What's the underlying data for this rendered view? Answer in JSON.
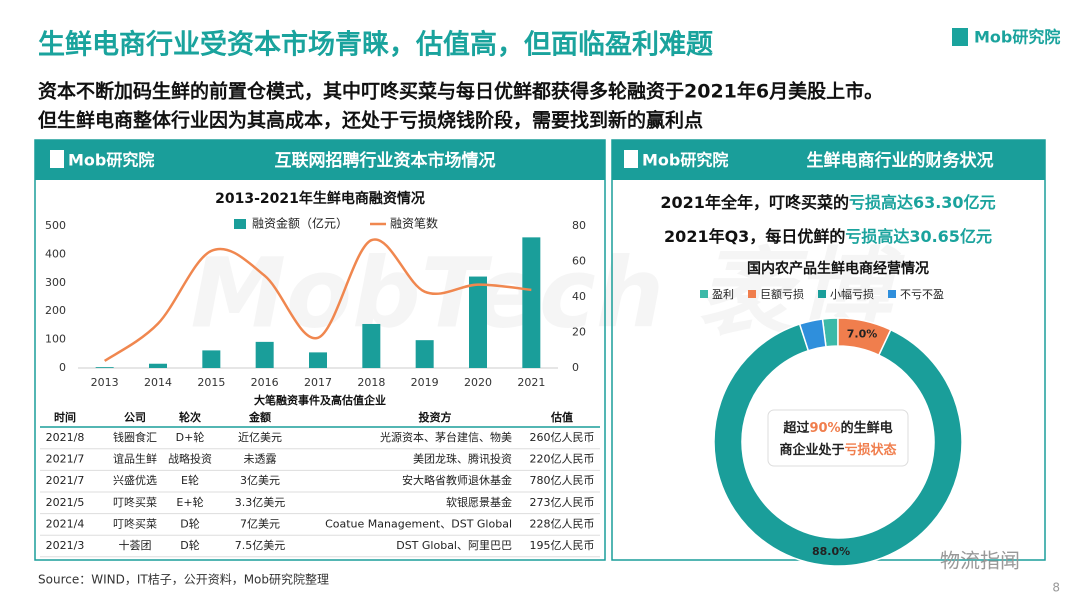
{
  "header": {
    "title": "生鲜电商行业受资本市场青睐，估值高，但面临盈利难题",
    "logo": "Mob研究院",
    "subtitle": [
      "资本不断加码生鲜的前置仓模式，其中叮咚买菜与每日优鲜都获得多轮融资于2021年6月美股上市。",
      "但生鲜电商整体行业因为其高成本，还处于亏损烧钱阶段，需要找到新的赢利点"
    ]
  },
  "left_panel": {
    "title": "互联网招聘行业资本市场情况"
  },
  "right_panel": {
    "title": "生鲜电商行业的财务状况",
    "highlights": [
      [
        "2021年全年，叮咚买菜的",
        "亏损高达63.30亿元"
      ],
      [
        "2021年Q3，每日优鲜的",
        "亏损高达30.65亿元"
      ]
    ]
  },
  "table": {
    "title": "大笔融资事件及高估值企业",
    "columns": [
      "时间",
      "公司",
      "轮次",
      "金额",
      "投资方",
      "估值"
    ],
    "rows": [
      [
        "2021/8",
        "钱圈食汇",
        "D+轮",
        "近亿美元",
        "光源资本、茅台建信、物美",
        "260亿人民币"
      ],
      [
        "2021/7",
        "谊品生鲜",
        "战略投资",
        "未透露",
        "美团龙珠、腾讯投资",
        "220亿人民币"
      ],
      [
        "2021/7",
        "兴盛优选",
        "E轮",
        "3亿美元",
        "安大略省教师退休基金",
        "780亿人民币"
      ],
      [
        "2021/5",
        "叮咚买菜",
        "E+轮",
        "3.3亿美元",
        "软银愿景基金",
        "273亿人民币"
      ],
      [
        "2021/4",
        "叮咚买菜",
        "D轮",
        "7亿美元",
        "Coatue Management、DST Global",
        "228亿人民币"
      ],
      [
        "2021/3",
        "十荟团",
        "D轮",
        "7.5亿美元",
        "DST Global、阿里巴巴",
        "195亿人民币"
      ]
    ]
  },
  "chart_data": [
    {
      "type": "combo",
      "title": "2013-2021年生鲜电商融资情况",
      "categories": [
        "2013",
        "2014",
        "2015",
        "2016",
        "2017",
        "2018",
        "2019",
        "2020",
        "2021"
      ],
      "series": [
        {
          "name": "融资金额（亿元）",
          "type": "bar",
          "color": "#1a9e9a",
          "values": [
            3,
            15,
            62,
            92,
            55,
            155,
            98,
            322,
            460
          ]
        },
        {
          "name": "融资笔数",
          "type": "line",
          "axis": "y2",
          "color": "#f0874f",
          "values": [
            4,
            25,
            66,
            52,
            17,
            72,
            43,
            47,
            44
          ]
        }
      ],
      "ylim": [
        0,
        500
      ],
      "yticks": [
        0,
        100,
        200,
        300,
        400,
        500
      ],
      "y2lim": [
        0,
        80
      ],
      "y2ticks": [
        0,
        20,
        40,
        60,
        80
      ]
    },
    {
      "type": "donut",
      "title": "国内农产品生鲜电商经营情况",
      "categories": [
        "盈利",
        "巨额亏损",
        "小幅亏损",
        "不亏不盈"
      ],
      "values": [
        2,
        7,
        88,
        3
      ],
      "value_labels": [
        null,
        "7.0%",
        "88.0%",
        null
      ],
      "colors": [
        "#3cb9a8",
        "#f07e4d",
        "#1a9e9a",
        "#2f8fdc"
      ],
      "center_text": [
        [
          "超过",
          "90%",
          "的生鲜电"
        ],
        [
          "商企业处于",
          "亏损状态"
        ]
      ]
    }
  ],
  "source": "Source：WIND，IT桔子，公开资料，Mob研究院整理",
  "watermark": "MobTech 袤博",
  "wechat": "物流指闻",
  "page_number": "8"
}
